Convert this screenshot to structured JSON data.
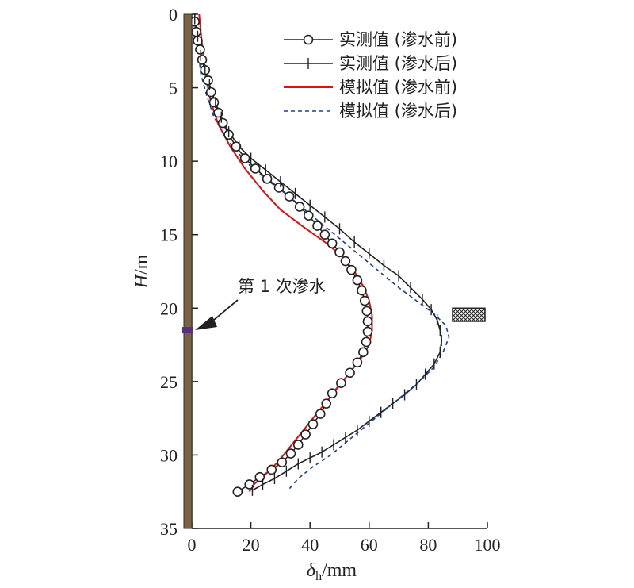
{
  "chart_data": {
    "type": "line",
    "xlabel": "δ",
    "xlabel_sub": "h",
    "xlabel_unit": "/mm",
    "ylabel": "H",
    "ylabel_unit": "/m",
    "xlim": [
      0,
      100
    ],
    "ylim": [
      0,
      35
    ],
    "y_inverted": true,
    "x_ticks": [
      "0",
      "20",
      "40",
      "60",
      "80",
      "100"
    ],
    "y_ticks": [
      "0",
      "5",
      "10",
      "15",
      "20",
      "25",
      "30",
      "35"
    ],
    "legend_position": "top-right",
    "annotation": {
      "text": "第 1 次渗水",
      "point": [
        0,
        21.5
      ]
    },
    "series": [
      {
        "name": "实测值 (渗水前)",
        "style": "line-circle",
        "color": "#222222",
        "points": [
          [
            1,
            0.5
          ],
          [
            1.5,
            1.2
          ],
          [
            2,
            1.8
          ],
          [
            2.8,
            2.4
          ],
          [
            3.5,
            3.1
          ],
          [
            4.5,
            3.8
          ],
          [
            5.5,
            4.5
          ],
          [
            6.5,
            5.3
          ],
          [
            7.5,
            6.0
          ],
          [
            9,
            6.7
          ],
          [
            10.5,
            7.4
          ],
          [
            12.5,
            8.2
          ],
          [
            15,
            9.0
          ],
          [
            18,
            9.8
          ],
          [
            21.5,
            10.5
          ],
          [
            25.5,
            11.2
          ],
          [
            29.5,
            11.8
          ],
          [
            33,
            12.4
          ],
          [
            36.5,
            13.1
          ],
          [
            39.5,
            13.7
          ],
          [
            42.5,
            14.4
          ],
          [
            45,
            15.0
          ],
          [
            47.5,
            15.6
          ],
          [
            50,
            16.2
          ],
          [
            52,
            16.8
          ],
          [
            54,
            17.4
          ],
          [
            56,
            18.1
          ],
          [
            57.5,
            18.8
          ],
          [
            58.5,
            19.5
          ],
          [
            59.2,
            20.2
          ],
          [
            59.5,
            20.9
          ],
          [
            59.5,
            21.6
          ],
          [
            59,
            22.3
          ],
          [
            58,
            23.0
          ],
          [
            56,
            23.7
          ],
          [
            53.5,
            24.4
          ],
          [
            50.5,
            25.1
          ],
          [
            47.5,
            25.8
          ],
          [
            45.5,
            26.5
          ],
          [
            43.5,
            27.2
          ],
          [
            41,
            27.9
          ],
          [
            38.5,
            28.6
          ],
          [
            36,
            29.3
          ],
          [
            33.5,
            29.9
          ],
          [
            30.5,
            30.5
          ],
          [
            27,
            31.0
          ],
          [
            23,
            31.5
          ],
          [
            19.5,
            32.0
          ],
          [
            15.5,
            32.5
          ]
        ]
      },
      {
        "name": "实测值 (渗水后)",
        "style": "line-plus",
        "color": "#222222",
        "points": [
          [
            1,
            0.3
          ],
          [
            2,
            1.5
          ],
          [
            3,
            2.8
          ],
          [
            4.5,
            3.8
          ],
          [
            6,
            4.8
          ],
          [
            8,
            6.0
          ],
          [
            10,
            7.0
          ],
          [
            12.5,
            8.0
          ],
          [
            16,
            9.0
          ],
          [
            20,
            9.8
          ],
          [
            25,
            10.6
          ],
          [
            30,
            11.4
          ],
          [
            35,
            12.2
          ],
          [
            40,
            13.0
          ],
          [
            45,
            13.8
          ],
          [
            50,
            14.6
          ],
          [
            55,
            15.5
          ],
          [
            60,
            16.3
          ],
          [
            65,
            17.1
          ],
          [
            70,
            17.8
          ],
          [
            74,
            18.6
          ],
          [
            78,
            19.4
          ],
          [
            81,
            20.1
          ],
          [
            83,
            20.8
          ],
          [
            84,
            21.5
          ],
          [
            84.5,
            22.2
          ],
          [
            84,
            23.0
          ],
          [
            82,
            23.8
          ],
          [
            79,
            24.5
          ],
          [
            76,
            25.2
          ],
          [
            72,
            25.9
          ],
          [
            68,
            26.5
          ],
          [
            64,
            27.1
          ],
          [
            60,
            27.7
          ],
          [
            56,
            28.3
          ],
          [
            52,
            28.8
          ],
          [
            48,
            29.3
          ],
          [
            44,
            29.8
          ],
          [
            40,
            30.2
          ],
          [
            36,
            30.6
          ],
          [
            32,
            31.1
          ],
          [
            28,
            31.6
          ],
          [
            24,
            32.0
          ],
          [
            20.5,
            32.4
          ]
        ]
      },
      {
        "name": "模拟值 (渗水前)",
        "style": "solid",
        "color": "#dd1111",
        "points": [
          [
            2.5,
            0
          ],
          [
            3.2,
            1.5
          ],
          [
            4,
            3
          ],
          [
            5,
            4.5
          ],
          [
            6.5,
            6
          ],
          [
            9,
            7.5
          ],
          [
            13,
            9
          ],
          [
            18,
            10.5
          ],
          [
            24,
            12
          ],
          [
            30,
            13.3
          ],
          [
            38,
            14.5
          ],
          [
            45,
            15.5
          ],
          [
            51,
            16.5
          ],
          [
            55,
            17.5
          ],
          [
            58,
            18.5
          ],
          [
            60,
            19.5
          ],
          [
            61,
            20.5
          ],
          [
            61,
            21.5
          ],
          [
            60,
            22.5
          ],
          [
            57,
            23.5
          ],
          [
            53,
            24.5
          ],
          [
            49,
            25.5
          ],
          [
            45,
            26.5
          ],
          [
            41,
            27.5
          ],
          [
            37,
            28.5
          ],
          [
            33,
            29.5
          ],
          [
            29,
            30.5
          ],
          [
            25,
            31.3
          ],
          [
            21,
            32
          ],
          [
            19.5,
            32.5
          ]
        ]
      },
      {
        "name": "模拟值 (渗水后)",
        "style": "dashed",
        "color": "#1a3f9a",
        "points": [
          [
            1,
            0
          ],
          [
            2,
            2
          ],
          [
            3,
            4
          ],
          [
            5,
            5.5
          ],
          [
            7.5,
            7
          ],
          [
            12,
            8.5
          ],
          [
            18,
            10
          ],
          [
            25,
            11.2
          ],
          [
            33,
            12.4
          ],
          [
            40,
            13.6
          ],
          [
            46,
            14.6
          ],
          [
            52,
            15.6
          ],
          [
            58,
            16.6
          ],
          [
            64,
            17.6
          ],
          [
            70,
            18.6
          ],
          [
            76,
            19.5
          ],
          [
            82,
            20.4
          ],
          [
            86,
            21.2
          ],
          [
            87,
            22
          ],
          [
            85,
            23
          ],
          [
            82,
            24
          ],
          [
            77,
            25
          ],
          [
            71,
            26
          ],
          [
            65,
            27
          ],
          [
            59,
            28
          ],
          [
            53,
            29
          ],
          [
            47,
            30
          ],
          [
            41,
            30.8
          ],
          [
            36,
            31.6
          ],
          [
            33,
            32.3
          ]
        ]
      }
    ]
  }
}
